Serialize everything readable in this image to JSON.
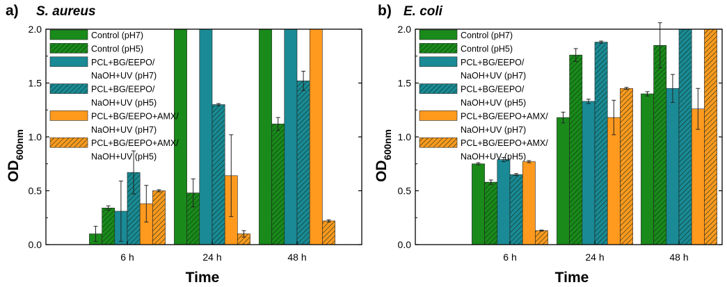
{
  "figure": {
    "colors": {
      "control": "#1a8a1a",
      "pcl": "#1a8a96",
      "amx": "#ff9a1f",
      "errorbar": "#222222"
    }
  },
  "chart_data": [
    {
      "type": "bar",
      "panel_letter": "a)",
      "title": "S. aureus",
      "xlabel": "Time",
      "ylabel_main": "OD",
      "ylabel_sub": "600nm",
      "ylim": [
        0,
        2.0
      ],
      "yticks": [
        "0.0",
        "0.5",
        "1.0",
        "1.5",
        "2.0"
      ],
      "categories": [
        "6 h",
        "24 h",
        "48 h"
      ],
      "legend_position": "top-left",
      "series": [
        {
          "name_lines": [
            "Control (pH7)"
          ],
          "color": "#1a8a1a",
          "hatched": false,
          "values": [
            0.1,
            2.0,
            2.0
          ],
          "errors": [
            0.07,
            null,
            null
          ]
        },
        {
          "name_lines": [
            "Control (pH5)"
          ],
          "color": "#1a8a1a",
          "hatched": true,
          "values": [
            0.34,
            0.48,
            1.12
          ],
          "errors": [
            0.02,
            0.13,
            0.06
          ]
        },
        {
          "name_lines": [
            "PCL+BG/EEPO/",
            "NaOH+UV (pH7)"
          ],
          "color": "#1a8a96",
          "hatched": false,
          "values": [
            0.31,
            2.0,
            2.0
          ],
          "errors": [
            0.28,
            null,
            null
          ]
        },
        {
          "name_lines": [
            "PCL+BG/EEPO/",
            "NaOH+UV (pH5)"
          ],
          "color": "#1a8a96",
          "hatched": true,
          "values": [
            0.67,
            1.3,
            1.52
          ],
          "errors": [
            0.2,
            0.01,
            0.09
          ]
        },
        {
          "name_lines": [
            "PCL+BG/EEPO+AMX/",
            "NaOH+UV (pH7)"
          ],
          "color": "#ff9a1f",
          "hatched": false,
          "values": [
            0.38,
            0.64,
            2.0
          ],
          "errors": [
            0.17,
            0.38,
            null
          ]
        },
        {
          "name_lines": [
            "PCL+BG/EEPO+AMX/",
            "NaOH+UV (pH5)"
          ],
          "color": "#ff9a1f",
          "hatched": true,
          "values": [
            0.5,
            0.1,
            0.22
          ],
          "errors": [
            0.01,
            0.03,
            0.01
          ]
        }
      ]
    },
    {
      "type": "bar",
      "panel_letter": "b)",
      "title": "E. coli",
      "xlabel": "Time",
      "ylabel_main": "OD",
      "ylabel_sub": "600nm",
      "ylim": [
        0,
        2.0
      ],
      "yticks": [
        "0.0",
        "0.5",
        "1.0",
        "1.5",
        "2.0"
      ],
      "categories": [
        "6 h",
        "24 h",
        "48 h"
      ],
      "legend_position": "top-left",
      "series": [
        {
          "name_lines": [
            "Control (pH7)"
          ],
          "color": "#1a8a1a",
          "hatched": false,
          "values": [
            0.75,
            1.18,
            1.4
          ],
          "errors": [
            0.01,
            0.05,
            0.02
          ]
        },
        {
          "name_lines": [
            "Control (pH5)"
          ],
          "color": "#1a8a1a",
          "hatched": true,
          "values": [
            0.58,
            1.76,
            1.85
          ],
          "errors": [
            0.02,
            0.06,
            0.21
          ]
        },
        {
          "name_lines": [
            "PCL+BG/EEPO/",
            "NaOH+UV (pH7)"
          ],
          "color": "#1a8a96",
          "hatched": false,
          "values": [
            0.79,
            1.33,
            1.45
          ],
          "errors": [
            0.02,
            0.02,
            0.13
          ]
        },
        {
          "name_lines": [
            "PCL+BG/EEPO/",
            "NaOH+UV (pH5)"
          ],
          "color": "#1a8a96",
          "hatched": true,
          "values": [
            0.65,
            1.88,
            2.0
          ],
          "errors": [
            0.01,
            0.01,
            null
          ]
        },
        {
          "name_lines": [
            "PCL+BG/EEPO+AMX/",
            "NaOH+UV (pH7)"
          ],
          "color": "#ff9a1f",
          "hatched": false,
          "values": [
            0.77,
            1.18,
            1.26
          ],
          "errors": [
            0.01,
            0.16,
            0.19
          ]
        },
        {
          "name_lines": [
            "PCL+BG/EEPO+AMX/",
            "NaOH+UV (pH5)"
          ],
          "color": "#ff9a1f",
          "hatched": true,
          "values": [
            0.13,
            1.45,
            2.0
          ],
          "errors": [
            0.005,
            0.01,
            null
          ]
        }
      ]
    }
  ]
}
